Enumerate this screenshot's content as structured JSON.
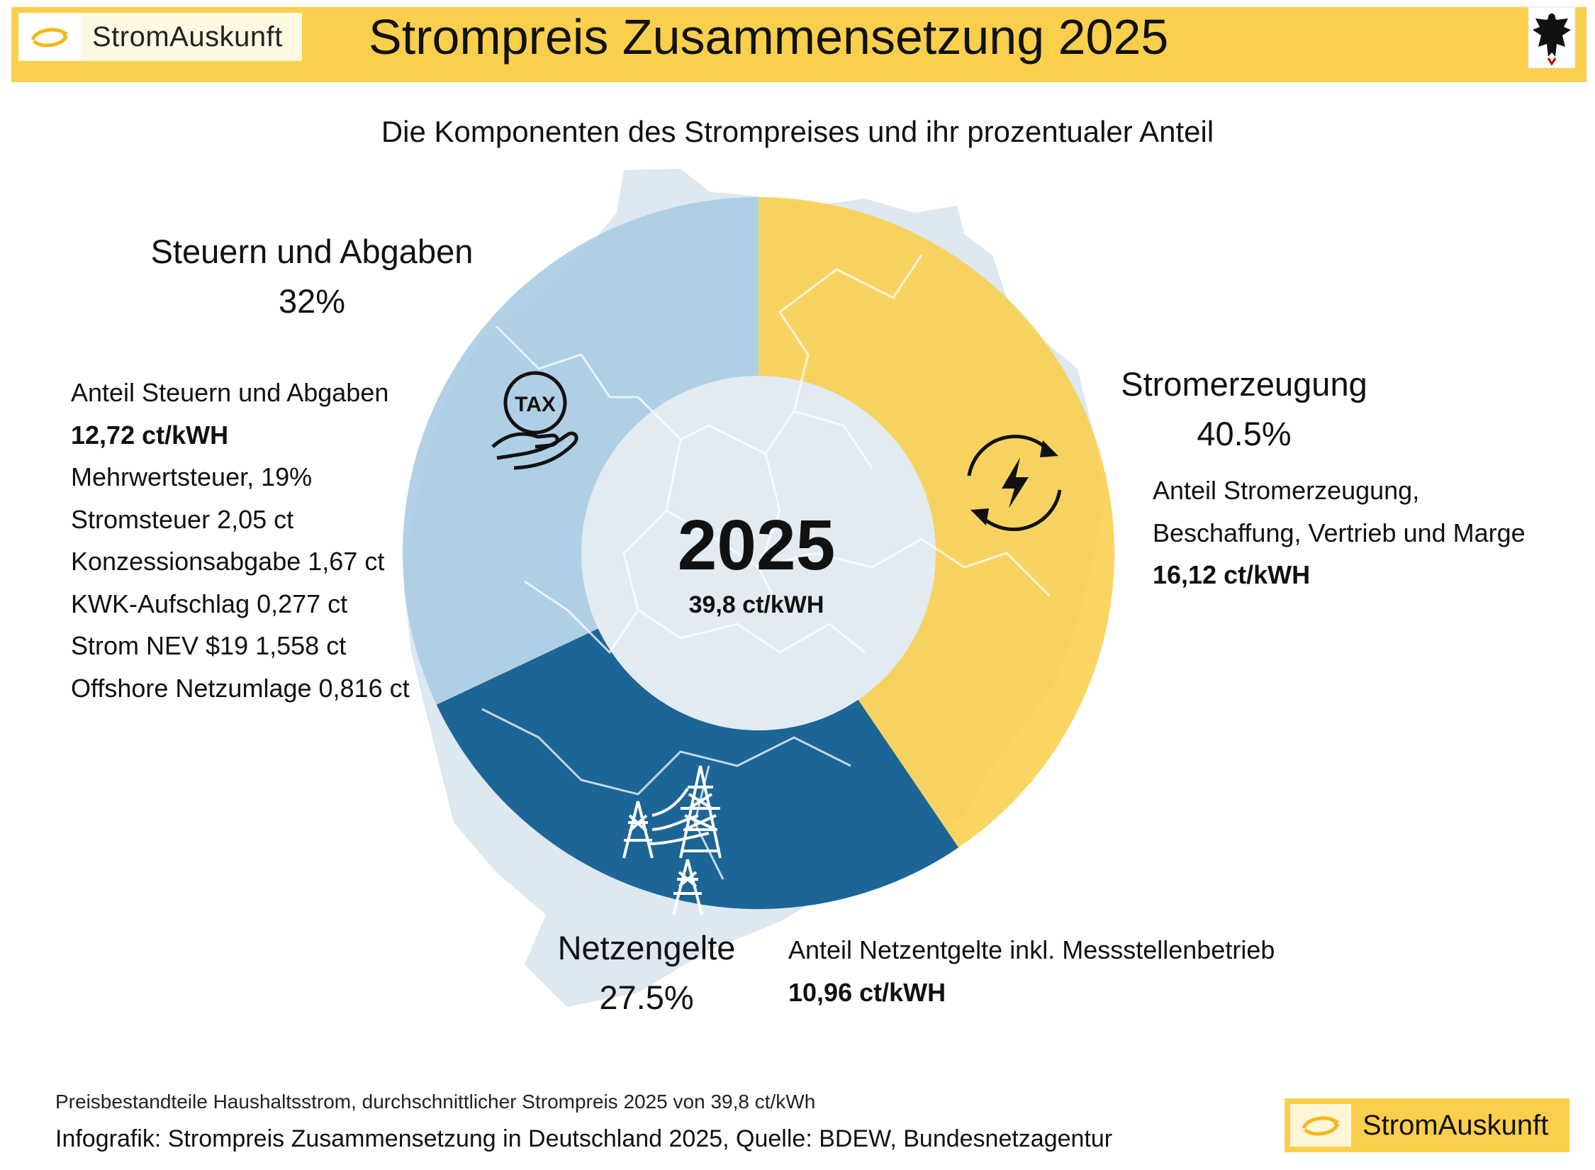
{
  "header": {
    "brand": "StromAuskunft",
    "title": "Strompreis Zusammensetzung 2025"
  },
  "subtitle": "Die Komponenten des Strompreises und ihr prozentualer Anteil",
  "center": {
    "year": "2025",
    "value": "39,8 ct/kWH"
  },
  "segments": {
    "steuern": {
      "title": "Steuern und Abgaben",
      "percent": "32%",
      "lines": [
        "Anteil Steuern und Abgaben",
        "12,72 ct/kWH",
        "Mehrwertsteuer, 19%",
        "Stromsteuer 2,05 ct",
        "Konzessionsabgabe 1,67 ct",
        "KWK-Aufschlag 0,277 ct",
        "Strom NEV $19 1,558 ct",
        "Offshore Netzumlage 0,816 ct"
      ],
      "icon_label": "TAX"
    },
    "strom": {
      "title": "Stromerzeugung",
      "percent": "40.5%",
      "lines": [
        "Anteil Stromerzeugung,",
        "Beschaffung, Vertrieb und Marge",
        "16,12 ct/kWH"
      ]
    },
    "netz": {
      "title": "Netzengelte",
      "percent": "27.5%",
      "lines": [
        "Anteil Netzentgelte inkl. Messstellenbetrieb",
        "10,96 ct/kWH"
      ]
    }
  },
  "footer": {
    "note": "Preisbestandteile Haushaltsstrom, durchschnittlicher Strompreis 2025 von 39,8 ct/kWh",
    "source": "Infografik: Strompreis Zusammensetzung in Deutschland 2025, Quelle: BDEW, Bundesnetzagentur",
    "brand": "StromAuskunft"
  },
  "colors": {
    "yellow": "#f9cf4c",
    "steuern": "#a8cbe3",
    "netz": "#1c6597",
    "center": "#e2ebf2",
    "map": "#dde8f1"
  },
  "chart_data": {
    "type": "pie",
    "title": "Strompreis Zusammensetzung 2025",
    "total": 39.8,
    "unit": "ct/kWh",
    "categories": [
      "Stromerzeugung",
      "Netzengelte",
      "Steuern und Abgaben"
    ],
    "values": [
      40.5,
      27.5,
      32
    ],
    "ct_values": [
      16.12,
      10.96,
      12.72
    ]
  }
}
